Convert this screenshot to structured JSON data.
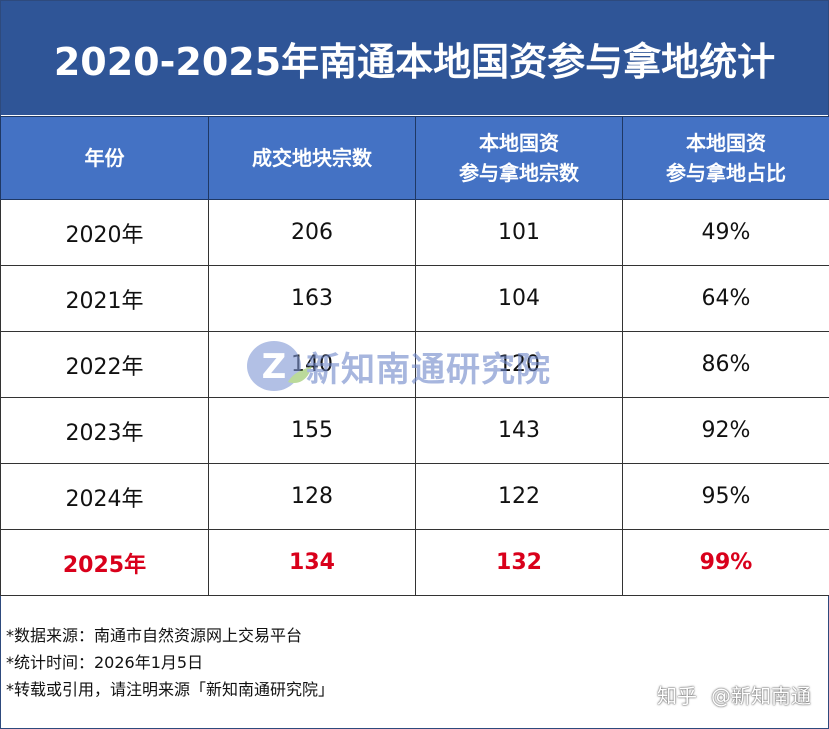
{
  "chart_data": {
    "type": "table",
    "title": "2020-2025年南通本地国资参与拿地统计",
    "columns": [
      "年份",
      "成交地块宗数",
      "本地国资 参与拿地宗数",
      "本地国资 参与拿地占比"
    ],
    "header": {
      "year": "年份",
      "total": "成交地块宗数",
      "local_line1": "本地国资",
      "local_line2": "参与拿地宗数",
      "share_line1": "本地国资",
      "share_line2": "参与拿地占比"
    },
    "rows": [
      {
        "year": "2020年",
        "total": "206",
        "local": "101",
        "share": "49%"
      },
      {
        "year": "2021年",
        "total": "163",
        "local": "104",
        "share": "64%"
      },
      {
        "year": "2022年",
        "total": "140",
        "local": "120",
        "share": "86%"
      },
      {
        "year": "2023年",
        "total": "155",
        "local": "143",
        "share": "92%"
      },
      {
        "year": "2024年",
        "total": "128",
        "local": "122",
        "share": "95%"
      },
      {
        "year": "2025年",
        "total": "134",
        "local": "132",
        "share": "99%"
      }
    ],
    "highlight_row": "2025年",
    "highlight_color": "#d9001b",
    "header_color": "#4472c4",
    "title_color": "#2f5597"
  },
  "notes": [
    "*数据来源：南通市自然资源网上交易平台",
    "*统计时间：2026年1月5日",
    "*转载或引用，请注明来源「新知南通研究院」"
  ],
  "watermark": {
    "text": "新知南通研究院",
    "logo_letter": "Z"
  },
  "attribution": {
    "site": "知乎",
    "handle": "@新知南通"
  }
}
